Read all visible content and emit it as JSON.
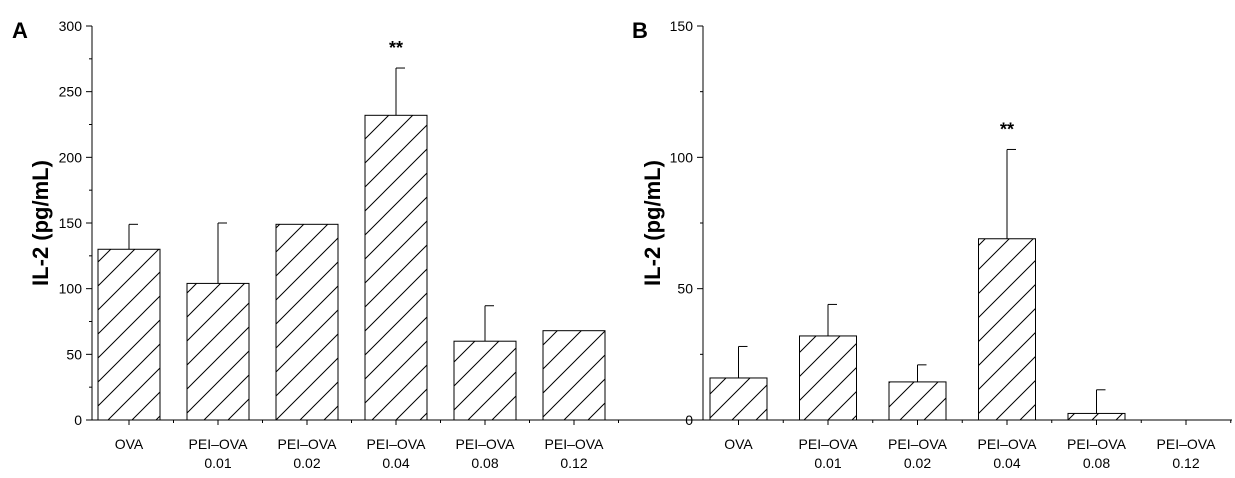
{
  "chart_data": [
    {
      "type": "bar",
      "panel_label": "A",
      "ylabel": "IL-2 (pg/mL)",
      "ylim": [
        0,
        300
      ],
      "yticks": [
        0,
        50,
        100,
        150,
        200,
        250,
        300
      ],
      "categories": [
        [
          "OVA"
        ],
        [
          "PEI–OVA",
          "0.01"
        ],
        [
          "PEI–OVA",
          "0.02"
        ],
        [
          "PEI–OVA",
          "0.04"
        ],
        [
          "PEI–OVA",
          "0.08"
        ],
        [
          "PEI–OVA",
          "0.12"
        ]
      ],
      "values": [
        130,
        104,
        149,
        232,
        60,
        68
      ],
      "errors": [
        19,
        46,
        0,
        36,
        27,
        0
      ],
      "annotations": [
        {
          "index": 3,
          "text": "**"
        }
      ],
      "fill": "diagonal-hatch",
      "grid": false
    },
    {
      "type": "bar",
      "panel_label": "B",
      "ylabel": "IL-2 (pg/mL)",
      "ylim": [
        0,
        150
      ],
      "yticks": [
        0,
        50,
        100,
        150
      ],
      "categories": [
        [
          "OVA"
        ],
        [
          "PEI–OVA",
          "0.01"
        ],
        [
          "PEI–OVA",
          "0.02"
        ],
        [
          "PEI–OVA",
          "0.04"
        ],
        [
          "PEI–OVA",
          "0.08"
        ],
        [
          "PEI–OVA",
          "0.12"
        ]
      ],
      "values": [
        16,
        32,
        14.5,
        69,
        2.5,
        0
      ],
      "errors": [
        12,
        12,
        6.5,
        34,
        9,
        0
      ],
      "annotations": [
        {
          "index": 3,
          "text": "**"
        }
      ],
      "fill": "diagonal-hatch",
      "grid": false
    }
  ],
  "colors": {
    "axis": "#000000",
    "bar_fill": "#ffffff",
    "hatch": "#000000"
  }
}
